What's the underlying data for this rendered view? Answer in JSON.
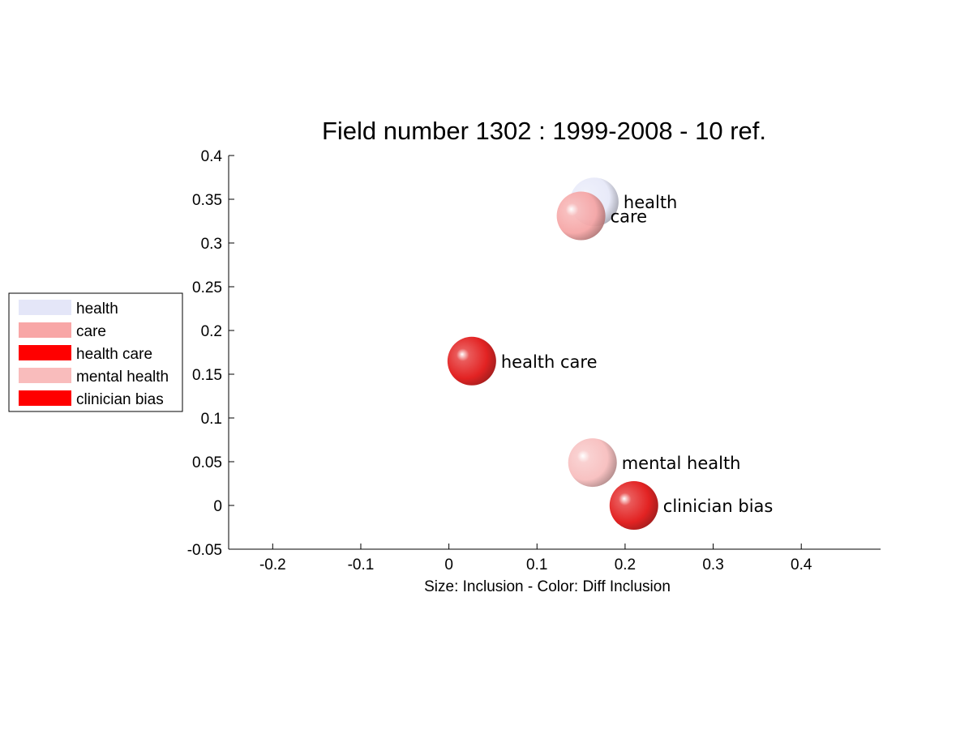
{
  "chart_data": {
    "type": "scatter",
    "title": "Field number 1302 : 1999-2008  - 10 ref.",
    "xlabel": "Size: Inclusion - Color: Diff Inclusion",
    "ylabel": "",
    "xlim": [
      -0.25,
      0.49
    ],
    "ylim": [
      -0.05,
      0.4
    ],
    "xticks": [
      -0.2,
      -0.1,
      0,
      0.1,
      0.2,
      0.3,
      0.4
    ],
    "xtick_labels": [
      "-0.2",
      "-0.1",
      "0",
      "0.1",
      "0.2",
      "0.3",
      "0.4"
    ],
    "yticks": [
      -0.05,
      0,
      0.05,
      0.1,
      0.15,
      0.2,
      0.25,
      0.3,
      0.35,
      0.4
    ],
    "ytick_labels": [
      "-0.05",
      "0",
      "0.05",
      "0.1",
      "0.15",
      "0.2",
      "0.25",
      "0.3",
      "0.35",
      "0.4"
    ],
    "grid": false,
    "legend_position": "left",
    "points": [
      {
        "name": "health",
        "x": 0.165,
        "y": 0.347,
        "color": "#e6e8f8"
      },
      {
        "name": "care",
        "x": 0.15,
        "y": 0.331,
        "color": "#f5a3a3"
      },
      {
        "name": "health care",
        "x": 0.026,
        "y": 0.165,
        "color": "#e01010"
      },
      {
        "name": "mental health",
        "x": 0.163,
        "y": 0.049,
        "color": "#f7bcbc"
      },
      {
        "name": "clinician bias",
        "x": 0.21,
        "y": 0.0,
        "color": "#e01010"
      }
    ],
    "legend": [
      {
        "label": "health",
        "color": "#e4e6f8"
      },
      {
        "label": "care",
        "color": "#f8a6a6"
      },
      {
        "label": "health care",
        "color": "#ff0000"
      },
      {
        "label": "mental health",
        "color": "#f9bcbc"
      },
      {
        "label": "clinician bias",
        "color": "#ff0000"
      }
    ]
  }
}
